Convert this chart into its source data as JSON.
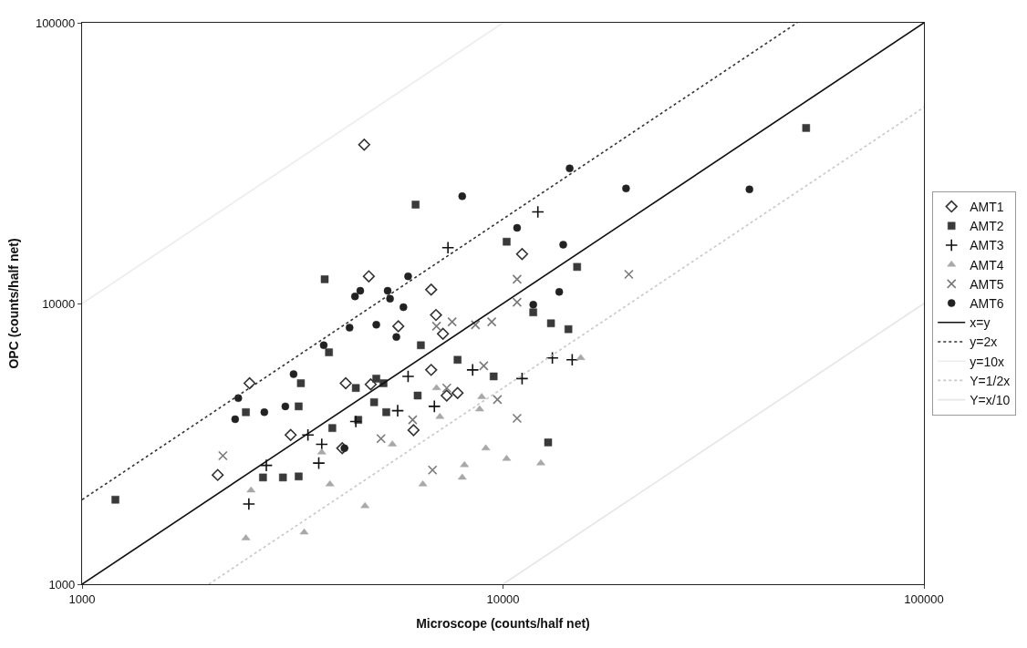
{
  "chart_data": {
    "type": "scatter",
    "xlabel": "Microscope (counts/half net)",
    "ylabel": "OPC (counts/half net)",
    "log": "xy",
    "xlim": [
      1000,
      100000
    ],
    "ylim": [
      1000,
      100000
    ],
    "xticks": [
      1000,
      10000,
      100000
    ],
    "yticks": [
      1000,
      10000,
      100000
    ],
    "legend": "right",
    "series": [
      {
        "name": "AMT1",
        "marker": "diamond",
        "color": "#333333",
        "x": [
          2100,
          2500,
          3130,
          4230,
          4800,
          4850,
          4150,
          4680,
          11100,
          6750,
          6930,
          7200,
          5640,
          6750,
          7350,
          7800,
          6130
        ],
        "values": [
          2450,
          5200,
          3400,
          5200,
          12500,
          5150,
          3050,
          36800,
          15000,
          11200,
          9100,
          7800,
          8300,
          5800,
          4700,
          4800,
          3540
        ]
      },
      {
        "name": "AMT2",
        "marker": "square",
        "color": "#3a3a3a",
        "x": [
          1200,
          3770,
          3860,
          3310,
          3270,
          2450,
          2690,
          3000,
          3270,
          3930,
          4470,
          5000,
          5200,
          4940,
          5280,
          4530,
          15000,
          6380,
          7800,
          9500,
          13000,
          14300,
          11800,
          12800,
          6270,
          6200,
          10200,
          52500
        ],
        "values": [
          2000,
          12200,
          6700,
          5200,
          4300,
          4100,
          2400,
          2400,
          2420,
          3600,
          5000,
          5400,
          5200,
          4450,
          4100,
          3850,
          13500,
          7100,
          6300,
          5500,
          8500,
          8100,
          9300,
          3200,
          4700,
          22500,
          16600,
          42200
        ]
      },
      {
        "name": "AMT3",
        "marker": "cross",
        "color": "#111111",
        "x": [
          2490,
          3440,
          2740,
          3650,
          4470,
          3710,
          8470,
          13100,
          14600,
          11100,
          6870,
          5950,
          5620,
          12100,
          7400
        ],
        "values": [
          1930,
          3400,
          2650,
          2700,
          3800,
          3150,
          5800,
          6400,
          6300,
          5400,
          4300,
          5500,
          4150,
          21200,
          15800
        ]
      },
      {
        "name": "AMT4",
        "marker": "triangle",
        "color": "#a8a8a8",
        "x": [
          2520,
          2450,
          3370,
          3880,
          4700,
          3710,
          6450,
          8000,
          8100,
          9100,
          10200,
          12300,
          7080,
          8900,
          8800,
          15300,
          5460,
          6950
        ],
        "values": [
          2160,
          1460,
          1530,
          2270,
          1900,
          2950,
          2270,
          2400,
          2660,
          3050,
          2800,
          2700,
          3950,
          4650,
          4200,
          6400,
          3150,
          5000
        ]
      },
      {
        "name": "AMT5",
        "marker": "x",
        "color": "#7a7a7a",
        "x": [
          2160,
          5130,
          10800,
          19900,
          10800,
          9400,
          8600,
          7570,
          6950,
          9000,
          9700,
          10800,
          6800,
          6100,
          7350
        ],
        "values": [
          2870,
          3300,
          12200,
          12700,
          10100,
          8600,
          8400,
          8600,
          8300,
          6000,
          4550,
          3900,
          2550,
          3850,
          5000
        ]
      },
      {
        "name": "AMT6",
        "marker": "circle",
        "color": "#222222",
        "x": [
          3180,
          2350,
          2310,
          2710,
          3040,
          3750,
          4320,
          4450,
          4580,
          5000,
          5320,
          5390,
          4200,
          5950,
          5800,
          5580,
          13600,
          11800,
          14400,
          8000,
          10800,
          13900,
          19600,
          38500
        ],
        "values": [
          5600,
          4600,
          3870,
          4100,
          4300,
          7100,
          8200,
          10600,
          11100,
          8400,
          11100,
          10400,
          3050,
          12500,
          9700,
          7600,
          11000,
          9900,
          30300,
          24100,
          18600,
          16200,
          25700,
          25500
        ]
      },
      {
        "name": "x=y",
        "type": "line",
        "line_style": "solid",
        "color": "#111111",
        "x": [
          1000,
          100000
        ],
        "values": [
          1000,
          100000
        ]
      },
      {
        "name": "y=2x",
        "type": "line",
        "line_style": "dotted",
        "color": "#333333",
        "x": [
          1000,
          50000
        ],
        "values": [
          2000,
          100000
        ]
      },
      {
        "name": "y=10x",
        "type": "line",
        "line_style": "solid",
        "color": "#ececec",
        "x": [
          1000,
          10000
        ],
        "values": [
          10000,
          100000
        ]
      },
      {
        "name": "Y=1/2x",
        "type": "line",
        "line_style": "dotted",
        "color": "#c8c8c8",
        "x": [
          2000,
          100000
        ],
        "values": [
          1000,
          50000
        ]
      },
      {
        "name": "Y=x/10",
        "type": "line",
        "line_style": "solid",
        "color": "#e6e6e6",
        "x": [
          10000,
          100000
        ],
        "values": [
          1000,
          10000
        ]
      }
    ]
  }
}
